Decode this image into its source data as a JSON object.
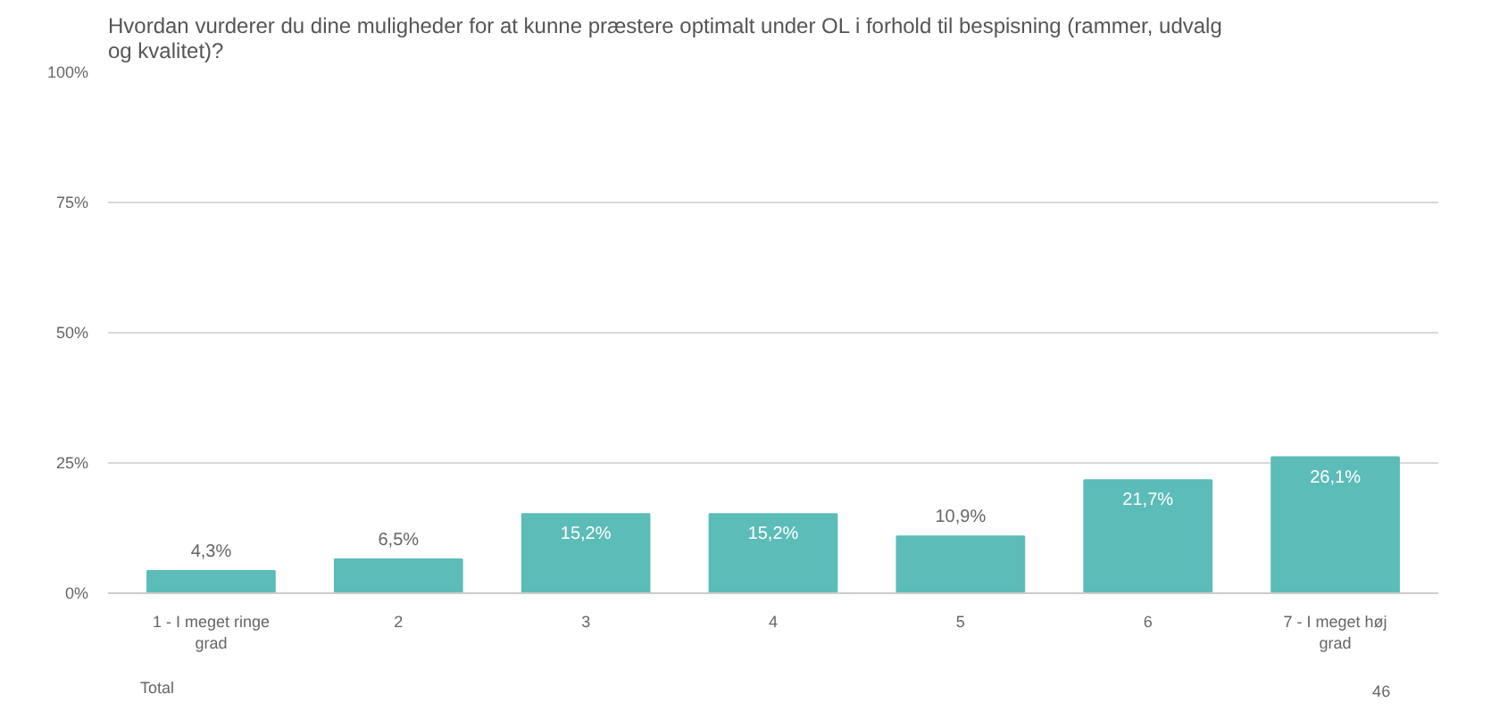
{
  "chart_data": {
    "type": "bar",
    "title": "Hvordan vurderer du dine muligheder for at kunne præstere optimalt under OL i forhold til bespisning (rammer, udvalg og kvalitet)?",
    "categories": [
      "1 - I meget ringe grad",
      "2",
      "3",
      "4",
      "5",
      "6",
      "7 - I meget høj grad"
    ],
    "values": [
      4.3,
      6.5,
      15.2,
      15.2,
      10.9,
      21.7,
      26.1
    ],
    "value_labels": [
      "4,3%",
      "6,5%",
      "15,2%",
      "15,2%",
      "10,9%",
      "21,7%",
      "26,1%"
    ],
    "color": "#5bbcb8",
    "ylim": [
      0,
      100
    ],
    "yticks": [
      {
        "value": 0,
        "label": "0%"
      },
      {
        "value": 25,
        "label": "25%"
      },
      {
        "value": 50,
        "label": "50%"
      },
      {
        "value": 75,
        "label": "75%"
      },
      {
        "value": 100,
        "label": "100%"
      }
    ],
    "grid": "y",
    "annotations": [
      "Total",
      "46"
    ]
  }
}
